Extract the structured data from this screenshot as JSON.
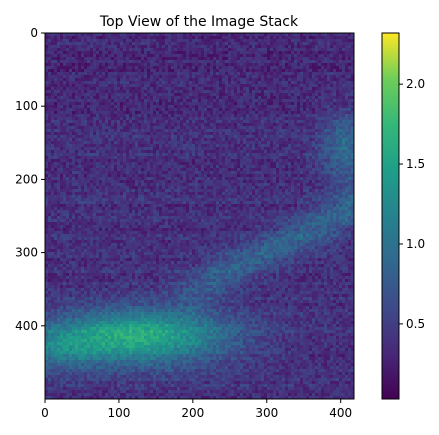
{
  "chart_data": {
    "type": "heatmap",
    "title": "Top View of the Image Stack",
    "xlabel": "",
    "ylabel": "",
    "xlim": [
      0,
      418
    ],
    "ylim": [
      500,
      0
    ],
    "y_axis_inverted": true,
    "x_ticks": [
      0,
      100,
      200,
      300,
      400
    ],
    "y_ticks": [
      0,
      100,
      200,
      300,
      400
    ],
    "colormap": "viridis",
    "color_range": [
      0.03,
      2.32
    ],
    "colorbar_ticks": [
      0.5,
      1.0,
      1.5,
      2.0
    ],
    "colorbar_tick_labels": [
      "0.5",
      "1.0",
      "1.5",
      "2.0"
    ],
    "grid": false,
    "features": [
      {
        "region": "bright band lower-left",
        "x_range": [
          0,
          260
        ],
        "y_range": [
          370,
          470
        ],
        "value_range": [
          1.2,
          2.1
        ]
      },
      {
        "region": "diagonal streak",
        "x_range": [
          200,
          418
        ],
        "y_range": [
          230,
          360
        ],
        "value_range": [
          0.8,
          1.2
        ]
      },
      {
        "region": "upper-right patch",
        "x_range": [
          340,
          418
        ],
        "y_range": [
          100,
          220
        ],
        "value_range": [
          0.8,
          1.3
        ]
      },
      {
        "region": "background",
        "x_range": [
          0,
          418
        ],
        "y_range": [
          0,
          500
        ],
        "value_range": [
          0.2,
          0.6
        ]
      }
    ]
  }
}
